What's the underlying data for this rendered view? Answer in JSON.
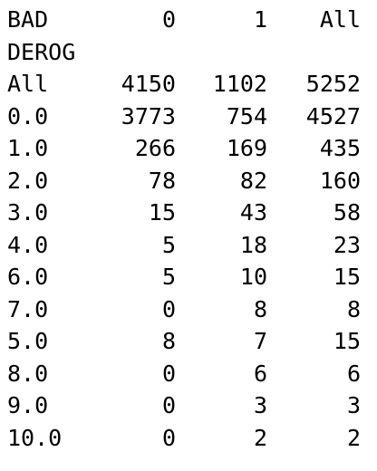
{
  "table": {
    "column_header_name": "BAD",
    "row_header_name": "DEROG",
    "columns": [
      "0",
      "1",
      "All"
    ],
    "rows": [
      {
        "index": "All",
        "values": [
          "4150",
          "1102",
          "5252"
        ]
      },
      {
        "index": "0.0",
        "values": [
          "3773",
          "754",
          "4527"
        ]
      },
      {
        "index": "1.0",
        "values": [
          "266",
          "169",
          "435"
        ]
      },
      {
        "index": "2.0",
        "values": [
          "78",
          "82",
          "160"
        ]
      },
      {
        "index": "3.0",
        "values": [
          "15",
          "43",
          "58"
        ]
      },
      {
        "index": "4.0",
        "values": [
          "5",
          "18",
          "23"
        ]
      },
      {
        "index": "6.0",
        "values": [
          "5",
          "10",
          "15"
        ]
      },
      {
        "index": "7.0",
        "values": [
          "0",
          "8",
          "8"
        ]
      },
      {
        "index": "5.0",
        "values": [
          "8",
          "7",
          "15"
        ]
      },
      {
        "index": "8.0",
        "values": [
          "0",
          "6",
          "6"
        ]
      },
      {
        "index": "9.0",
        "values": [
          "0",
          "3",
          "3"
        ]
      },
      {
        "index": "10.0",
        "values": [
          "0",
          "2",
          "2"
        ]
      }
    ]
  }
}
